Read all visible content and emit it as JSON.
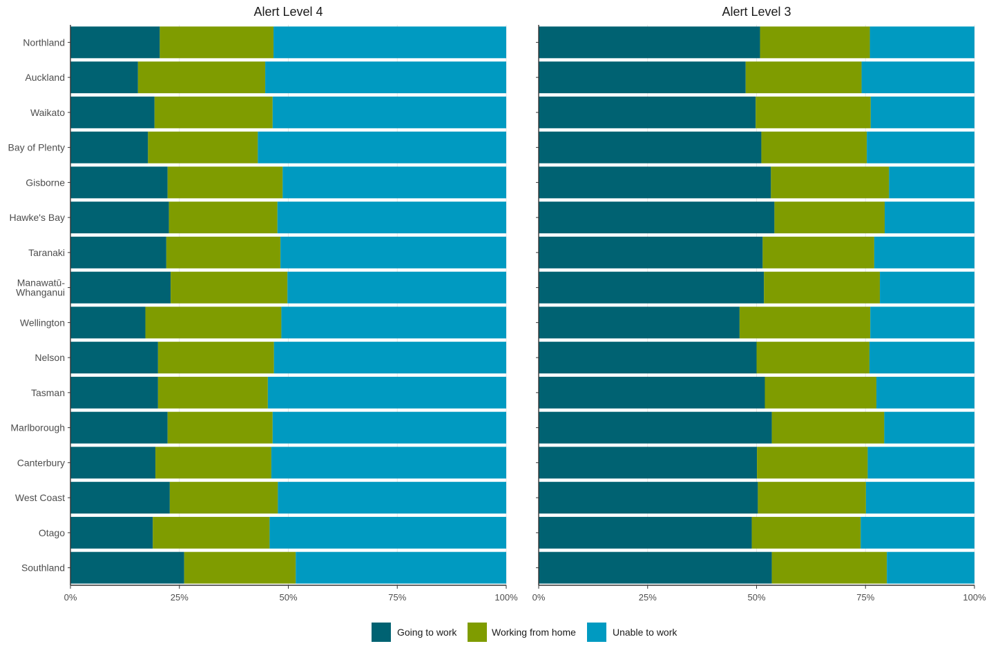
{
  "chart_data": {
    "type": "bar",
    "orientation": "horizontal",
    "stacked": true,
    "percent_scale": true,
    "xlim": [
      0,
      100
    ],
    "x_ticks": [
      0,
      25,
      50,
      75,
      100
    ],
    "x_tick_labels": [
      "0%",
      "25%",
      "50%",
      "75%",
      "100%"
    ],
    "legend_position": "bottom",
    "grid": true,
    "categories": [
      "Northland",
      "Auckland",
      "Waikato",
      "Bay of Plenty",
      "Gisborne",
      "Hawke's Bay",
      "Taranaki",
      "Manawatū-\nWhanganui",
      "Wellington",
      "Nelson",
      "Tasman",
      "Marlborough",
      "Canterbury",
      "West Coast",
      "Otago",
      "Southland"
    ],
    "series_meta": [
      {
        "name": "Going to work",
        "color": "#006272"
      },
      {
        "name": "Working from home",
        "color": "#7f9c00"
      },
      {
        "name": "Unable to work",
        "color": "#009ac1"
      }
    ],
    "panels": [
      {
        "title": "Alert Level 4",
        "series": [
          {
            "name": "Going to work",
            "values": [
              20.5,
              15.5,
              19.3,
              17.8,
              22.3,
              22.6,
              22.0,
              23.0,
              17.2,
              20.1,
              20.1,
              22.3,
              19.5,
              22.8,
              18.9,
              26.1
            ]
          },
          {
            "name": "Working from home",
            "values": [
              26.1,
              29.2,
              27.1,
              25.2,
              26.4,
              24.9,
              26.2,
              26.8,
              31.2,
              26.6,
              25.2,
              24.1,
              26.6,
              24.8,
              26.8,
              25.6
            ]
          },
          {
            "name": "Unable to work",
            "values": [
              53.4,
              55.3,
              53.6,
              57.0,
              51.3,
              52.5,
              51.8,
              50.2,
              51.6,
              53.3,
              54.7,
              53.6,
              53.9,
              52.4,
              54.3,
              48.3
            ]
          }
        ]
      },
      {
        "title": "Alert Level 3",
        "series": [
          {
            "name": "Going to work",
            "values": [
              50.8,
              47.5,
              49.8,
              51.1,
              53.3,
              54.1,
              51.4,
              51.7,
              46.1,
              50.0,
              51.9,
              53.5,
              50.1,
              50.3,
              48.9,
              53.5
            ]
          },
          {
            "name": "Working from home",
            "values": [
              25.2,
              26.6,
              26.4,
              24.2,
              27.1,
              25.3,
              25.6,
              26.6,
              30.0,
              25.9,
              25.6,
              25.8,
              25.4,
              24.8,
              25.0,
              26.4
            ]
          },
          {
            "name": "Unable to work",
            "values": [
              24.0,
              25.9,
              23.8,
              24.7,
              19.6,
              20.6,
              23.0,
              21.7,
              23.9,
              24.1,
              22.5,
              20.7,
              24.5,
              24.9,
              26.1,
              20.1
            ]
          }
        ]
      }
    ]
  }
}
